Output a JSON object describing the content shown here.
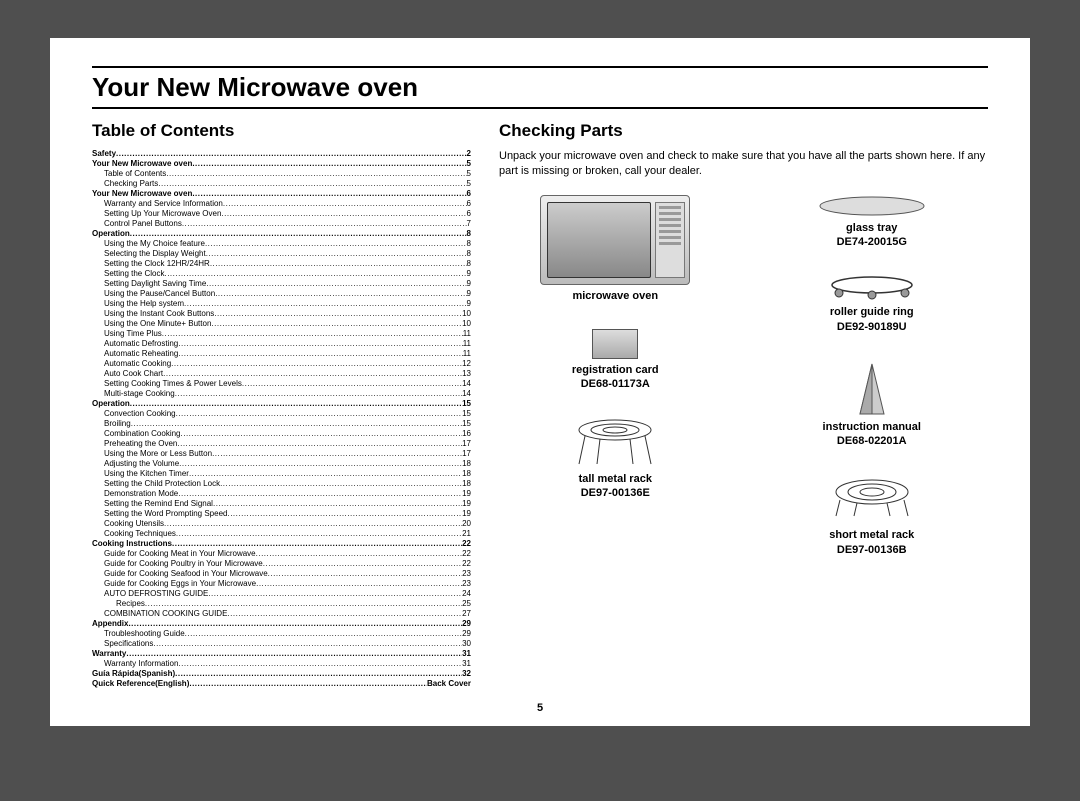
{
  "title": "Your New Microwave oven",
  "toc_heading": "Table of Contents",
  "checking_heading": "Checking Parts",
  "intro": "Unpack your microwave oven and check to make sure that you have all the parts shown here. If any part is missing or broken, call your dealer.",
  "page_number": "5",
  "parts": {
    "microwave": "microwave oven",
    "regcard_l1": "registration card",
    "regcard_l2": "DE68-01173A",
    "tallrack_l1": "tall metal rack",
    "tallrack_l2": "DE97-00136E",
    "tray_l1": "glass tray",
    "tray_l2": "DE74-20015G",
    "ring_l1": "roller guide ring",
    "ring_l2": "DE92-90189U",
    "manual_l1": "instruction manual",
    "manual_l2": "DE68-02201A",
    "shortrack_l1": "short metal rack",
    "shortrack_l2": "DE97-00136B"
  },
  "toc": [
    {
      "t": "Safety",
      "p": "2",
      "l": 0,
      "b": 1
    },
    {
      "t": "Your New Microwave oven",
      "p": "5",
      "l": 0,
      "b": 1
    },
    {
      "t": "Table of Contents",
      "p": "5",
      "l": 1
    },
    {
      "t": "Checking Parts",
      "p": "5",
      "l": 1
    },
    {
      "t": "Your New Microwave oven",
      "p": "6",
      "l": 0,
      "b": 1
    },
    {
      "t": "Warranty and Service Information",
      "p": "6",
      "l": 1
    },
    {
      "t": "Setting Up Your Microwave Oven",
      "p": "6",
      "l": 1
    },
    {
      "t": "Control Panel Buttons",
      "p": "7",
      "l": 1
    },
    {
      "t": "Operation",
      "p": "8",
      "l": 0,
      "b": 1
    },
    {
      "t": "Using the My Choice feature",
      "p": "8",
      "l": 1
    },
    {
      "t": "Selecting the Display Weight",
      "p": "8",
      "l": 1
    },
    {
      "t": "Setting the Clock 12HR/24HR",
      "p": "8",
      "l": 1
    },
    {
      "t": "Setting the Clock",
      "p": "9",
      "l": 1
    },
    {
      "t": "Setting Daylight Saving Time",
      "p": "9",
      "l": 1
    },
    {
      "t": "Using the Pause/Cancel Button",
      "p": "9",
      "l": 1
    },
    {
      "t": "Using the Help system",
      "p": "9",
      "l": 1
    },
    {
      "t": "Using the Instant Cook Buttons",
      "p": "10",
      "l": 1
    },
    {
      "t": "Using the One Minute+ Button",
      "p": "10",
      "l": 1
    },
    {
      "t": "Using Time Plus",
      "p": "11",
      "l": 1
    },
    {
      "t": "Automatic Defrosting",
      "p": "11",
      "l": 1
    },
    {
      "t": "Automatic Reheating",
      "p": "11",
      "l": 1
    },
    {
      "t": "Automatic Cooking",
      "p": "12",
      "l": 1
    },
    {
      "t": "Auto Cook Chart",
      "p": "13",
      "l": 1
    },
    {
      "t": "Setting Cooking Times & Power Levels",
      "p": "14",
      "l": 1
    },
    {
      "t": "Multi-stage Cooking",
      "p": "14",
      "l": 1
    },
    {
      "t": "Operation",
      "p": "15",
      "l": 0,
      "b": 1
    },
    {
      "t": "Convection Cooking",
      "p": "15",
      "l": 1
    },
    {
      "t": "Broiling",
      "p": "15",
      "l": 1
    },
    {
      "t": "Combination Cooking",
      "p": "16",
      "l": 1
    },
    {
      "t": "Preheating the Oven",
      "p": "17",
      "l": 1
    },
    {
      "t": "Using the More or Less Button",
      "p": "17",
      "l": 1
    },
    {
      "t": "Adjusting the Volume",
      "p": "18",
      "l": 1
    },
    {
      "t": "Using the Kitchen Timer",
      "p": "18",
      "l": 1
    },
    {
      "t": "Setting the Child Protection Lock",
      "p": "18",
      "l": 1
    },
    {
      "t": "Demonstration Mode",
      "p": "19",
      "l": 1
    },
    {
      "t": "Setting the Remind End Signal",
      "p": "19",
      "l": 1
    },
    {
      "t": "Setting the Word Prompting Speed",
      "p": "19",
      "l": 1
    },
    {
      "t": "Cooking Utensils",
      "p": "20",
      "l": 1
    },
    {
      "t": "Cooking Techniques",
      "p": "21",
      "l": 1
    },
    {
      "t": "Cooking Instructions",
      "p": "22",
      "l": 0,
      "b": 1
    },
    {
      "t": "Guide for Cooking Meat in Your Microwave",
      "p": "22",
      "l": 1
    },
    {
      "t": "Guide for Cooking Poultry in Your Microwave",
      "p": "22",
      "l": 1
    },
    {
      "t": "Guide for Cooking Seafood in Your Microwave",
      "p": "23",
      "l": 1
    },
    {
      "t": "Guide for Cooking Eggs in Your Microwave",
      "p": "23",
      "l": 1
    },
    {
      "t": "AUTO DEFROSTING GUIDE",
      "p": "24",
      "l": 1
    },
    {
      "t": "Recipes",
      "p": "25",
      "l": 2
    },
    {
      "t": "COMBINATION COOKING GUIDE",
      "p": "27",
      "l": 1
    },
    {
      "t": "Appendix",
      "p": "29",
      "l": 0,
      "b": 1
    },
    {
      "t": "Troubleshooting Guide",
      "p": "29",
      "l": 1
    },
    {
      "t": "Specifications",
      "p": "30",
      "l": 1
    },
    {
      "t": "Warranty",
      "p": "31",
      "l": 0,
      "b": 1
    },
    {
      "t": "Warranty Information",
      "p": "31",
      "l": 1
    },
    {
      "t": "Guía Rápida(Spanish)",
      "p": "32",
      "l": 0,
      "b": 1
    },
    {
      "t": "Quick Reference(English)",
      "p": "Back Cover",
      "l": 0,
      "b": 1
    }
  ]
}
